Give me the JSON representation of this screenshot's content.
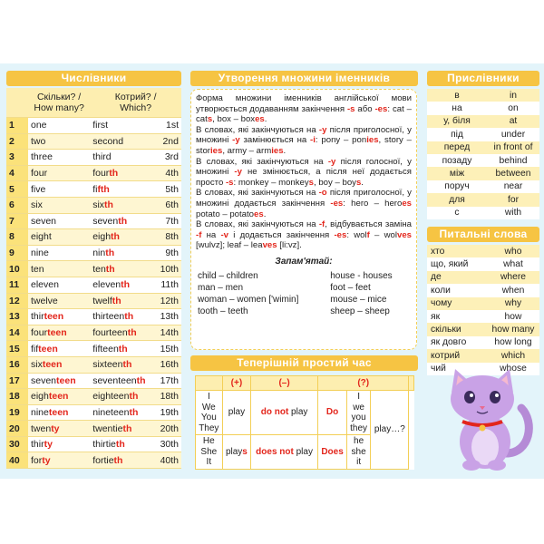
{
  "numerals": {
    "title": "Числівники",
    "header": [
      [
        "Скільки? /",
        "How many?"
      ],
      [
        "Котрий? /",
        "Which?"
      ]
    ],
    "rows": [
      [
        1,
        [
          "one"
        ],
        [
          "first"
        ],
        "1st"
      ],
      [
        2,
        [
          "two"
        ],
        [
          "second"
        ],
        "2nd"
      ],
      [
        3,
        [
          "three"
        ],
        [
          "third"
        ],
        "3rd"
      ],
      [
        4,
        [
          "four"
        ],
        [
          "four",
          [
            "th"
          ]
        ],
        "4th"
      ],
      [
        5,
        [
          "five"
        ],
        [
          "fi",
          [
            "fth"
          ]
        ],
        "5th"
      ],
      [
        6,
        [
          "six"
        ],
        [
          "six",
          [
            "th"
          ]
        ],
        "6th"
      ],
      [
        7,
        [
          "seven"
        ],
        [
          "seven",
          [
            "th"
          ]
        ],
        "7th"
      ],
      [
        8,
        [
          "eight"
        ],
        [
          "eigh",
          [
            "th"
          ]
        ],
        "8th"
      ],
      [
        9,
        [
          "nine"
        ],
        [
          "nin",
          [
            "th"
          ]
        ],
        "9th"
      ],
      [
        10,
        [
          "ten"
        ],
        [
          "ten",
          [
            "th"
          ]
        ],
        "10th"
      ],
      [
        11,
        [
          "eleven"
        ],
        [
          "eleven",
          [
            "th"
          ]
        ],
        "11th"
      ],
      [
        12,
        [
          "twelve"
        ],
        [
          "twelf",
          [
            "th"
          ]
        ],
        "12th"
      ],
      [
        13,
        [
          "thir",
          [
            "teen"
          ]
        ],
        [
          "thirteen",
          [
            "th"
          ]
        ],
        "13th"
      ],
      [
        14,
        [
          "four",
          [
            "teen"
          ]
        ],
        [
          "fourteen",
          [
            "th"
          ]
        ],
        "14th"
      ],
      [
        15,
        [
          "fif",
          [
            "teen"
          ]
        ],
        [
          "fifteen",
          [
            "th"
          ]
        ],
        "15th"
      ],
      [
        16,
        [
          "six",
          [
            "teen"
          ]
        ],
        [
          "sixteen",
          [
            "th"
          ]
        ],
        "16th"
      ],
      [
        17,
        [
          "seven",
          [
            "teen"
          ]
        ],
        [
          "seventeen",
          [
            "th"
          ]
        ],
        "17th"
      ],
      [
        18,
        [
          "eigh",
          [
            "teen"
          ]
        ],
        [
          "eighteen",
          [
            "th"
          ]
        ],
        "18th"
      ],
      [
        19,
        [
          "nine",
          [
            "teen"
          ]
        ],
        [
          "nineteen",
          [
            "th"
          ]
        ],
        "19th"
      ],
      [
        20,
        [
          "twen",
          [
            "ty"
          ]
        ],
        [
          "twentie",
          [
            "th"
          ]
        ],
        "20th"
      ],
      [
        30,
        [
          "thir",
          [
            "ty"
          ]
        ],
        [
          "thirtie",
          [
            "th"
          ]
        ],
        "30th"
      ],
      [
        40,
        [
          "for",
          [
            "ty"
          ]
        ],
        [
          "fortie",
          [
            "th"
          ]
        ],
        "40th"
      ]
    ]
  },
  "plurals": {
    "title": "Утворення множини іменників",
    "paragraphs": [
      [
        "Форма множини іменників англійської мови утворюється додаванням закінчення ",
        [
          "-s"
        ],
        " або ",
        [
          "-es"
        ],
        ": cat – cat",
        [
          "s"
        ],
        ", box – box",
        [
          "es"
        ],
        "."
      ],
      [
        "В словах, які закінчуються на ",
        [
          "-y"
        ],
        " після приголосної, у множині ",
        [
          "-y"
        ],
        " замінюється на ",
        [
          "-i"
        ],
        ": pony – pon",
        [
          "ies"
        ],
        ", story – stor",
        [
          "ies"
        ],
        ", army – arm",
        [
          "ies"
        ],
        "."
      ],
      [
        "В словах, які закінчуються на ",
        [
          "-y"
        ],
        " після голосної, у множині ",
        [
          "-y"
        ],
        " не змінюється, а після неї додається просто ",
        [
          "-s"
        ],
        ": monkey – monkey",
        [
          "s"
        ],
        ", boy – boy",
        [
          "s"
        ],
        "."
      ],
      [
        "В словах, які закінчуються на ",
        [
          "-o"
        ],
        " після приголосної, у множині додається закінчення ",
        [
          "-es"
        ],
        ": hero – hero",
        [
          "es"
        ],
        " potato – potato",
        [
          "es"
        ],
        "."
      ],
      [
        "В словах, які закінчуються на ",
        [
          "-f"
        ],
        ", відбувається заміна ",
        [
          "-f"
        ],
        " на ",
        [
          "-v"
        ],
        " і додається закінчення ",
        [
          "-es"
        ],
        ": wol",
        [
          "f"
        ],
        " – wol",
        [
          "ves"
        ],
        " [wulvz]; leaf – lea",
        [
          "ves"
        ],
        " [li:vz]."
      ]
    ],
    "remember": "Запам'ятай:",
    "pairs": [
      [
        "child – children",
        "house - houses"
      ],
      [
        "man – men",
        "foot – feet"
      ],
      [
        "woman – women ['wimin]",
        "mouse – mice"
      ],
      [
        "tooth – teeth",
        "sheep – sheep"
      ]
    ]
  },
  "present": {
    "title": "Теперішній простий час",
    "header": [
      "(+)",
      "(–)",
      "(?)"
    ],
    "rows": [
      {
        "pronouns": [
          "I",
          "We",
          "You",
          "They"
        ],
        "positive": [
          "play"
        ],
        "negative": [
          [
            "do not"
          ],
          " play"
        ],
        "question": "Do",
        "question_pronouns": [
          "I",
          "we",
          "you",
          "they"
        ],
        "tail": "play…?"
      },
      {
        "pronouns": [
          "He",
          "She",
          "It"
        ],
        "positive": [
          "play",
          [
            "s"
          ]
        ],
        "negative": [
          [
            "does not"
          ],
          " play"
        ],
        "question": "Does",
        "question_pronouns": [
          "he",
          "she",
          "it"
        ]
      }
    ]
  },
  "adverbs": {
    "title": "Прислівники",
    "rows": [
      [
        "в",
        "in"
      ],
      [
        "на",
        "on"
      ],
      [
        "у, біля",
        "at"
      ],
      [
        "під",
        "under"
      ],
      [
        "перед",
        "in front of"
      ],
      [
        "позаду",
        "behind"
      ],
      [
        "між",
        "between"
      ],
      [
        "поруч",
        "near"
      ],
      [
        "для",
        "for"
      ],
      [
        "с",
        "with"
      ]
    ]
  },
  "questions": {
    "title": "Питальні слова",
    "rows": [
      [
        "хто",
        "who"
      ],
      [
        "що, який",
        "what"
      ],
      [
        "де",
        "where"
      ],
      [
        "коли",
        "when"
      ],
      [
        "чому",
        "why"
      ],
      [
        "як",
        "how"
      ],
      [
        "скільки",
        "how many"
      ],
      [
        "як довго",
        "how long"
      ],
      [
        "котрий",
        "which"
      ],
      [
        "чий",
        "whose"
      ]
    ]
  }
}
